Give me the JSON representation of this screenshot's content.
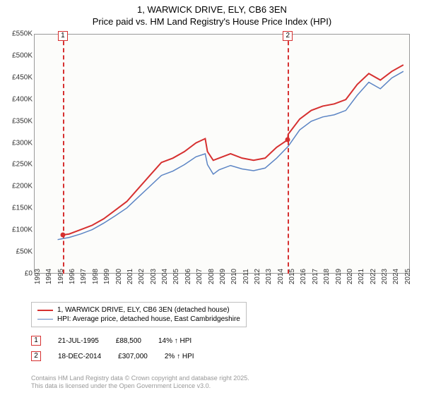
{
  "title": "1, WARWICK DRIVE, ELY, CB6 3EN",
  "subtitle": "Price paid vs. HM Land Registry's House Price Index (HPI)",
  "chart": {
    "type": "line",
    "background_color": "#fcfcfa",
    "grid_color": "#e8e8e8",
    "axis_color": "#999999",
    "series": [
      {
        "name": "1, WARWICK DRIVE, ELY, CB6 3EN (detached house)",
        "color": "#d63030",
        "line_width": 2,
        "x": [
          1995.5,
          1996,
          1997,
          1998,
          1999,
          2000,
          2001,
          2002,
          2003,
          2004,
          2005,
          2006,
          2007,
          2007.8,
          2008,
          2008.5,
          2009,
          2010,
          2011,
          2012,
          2013,
          2014,
          2014.95,
          2015,
          2016,
          2017,
          2018,
          2019,
          2020,
          2021,
          2022,
          2023,
          2024,
          2025
        ],
        "y": [
          88,
          90,
          100,
          110,
          125,
          145,
          165,
          195,
          225,
          255,
          265,
          280,
          300,
          310,
          280,
          260,
          265,
          275,
          265,
          260,
          265,
          290,
          307,
          320,
          355,
          375,
          385,
          390,
          400,
          435,
          460,
          445,
          465,
          480
        ]
      },
      {
        "name": "HPI: Average price, detached house, East Cambridgeshire",
        "color": "#5b84c4",
        "line_width": 1.5,
        "x": [
          1995,
          1996,
          1997,
          1998,
          1999,
          2000,
          2001,
          2002,
          2003,
          2004,
          2005,
          2006,
          2007,
          2007.8,
          2008,
          2008.5,
          2009,
          2010,
          2011,
          2012,
          2013,
          2014,
          2015,
          2016,
          2017,
          2018,
          2019,
          2020,
          2021,
          2022,
          2023,
          2024,
          2025
        ],
        "y": [
          77,
          82,
          90,
          100,
          115,
          132,
          150,
          175,
          200,
          225,
          235,
          250,
          268,
          275,
          250,
          228,
          238,
          248,
          240,
          236,
          242,
          265,
          292,
          330,
          350,
          360,
          365,
          375,
          410,
          440,
          425,
          450,
          465
        ]
      }
    ],
    "y_axis": {
      "min": 0,
      "max": 550,
      "step": 50,
      "labels": [
        "£0",
        "£50K",
        "£100K",
        "£150K",
        "£200K",
        "£250K",
        "£300K",
        "£350K",
        "£400K",
        "£450K",
        "£500K",
        "£550K"
      ],
      "label_fontsize": 10
    },
    "x_axis": {
      "min": 1993,
      "max": 2025.5,
      "ticks": [
        1993,
        1994,
        1995,
        1996,
        1997,
        1998,
        1999,
        2000,
        2001,
        2002,
        2003,
        2004,
        2005,
        2006,
        2007,
        2008,
        2009,
        2010,
        2011,
        2012,
        2013,
        2014,
        2015,
        2016,
        2017,
        2018,
        2019,
        2020,
        2021,
        2022,
        2023,
        2024,
        2025
      ],
      "label_fontsize": 10
    },
    "markers": [
      {
        "id": "1",
        "x": 1995.5,
        "y": 88.5
      },
      {
        "id": "2",
        "x": 2014.95,
        "y": 307
      }
    ]
  },
  "legend": {
    "border_color": "#bfbfbf",
    "items": [
      {
        "color": "#d63030",
        "line_width": 2,
        "label": "1, WARWICK DRIVE, ELY, CB6 3EN (detached house)"
      },
      {
        "color": "#5b84c4",
        "line_width": 1.5,
        "label": "HPI: Average price, detached house, East Cambridgeshire"
      }
    ]
  },
  "sales": [
    {
      "id": "1",
      "date": "21-JUL-1995",
      "price": "£88,500",
      "delta": "14% ↑ HPI"
    },
    {
      "id": "2",
      "date": "18-DEC-2014",
      "price": "£307,000",
      "delta": "2% ↑ HPI"
    }
  ],
  "footer_line1": "Contains HM Land Registry data © Crown copyright and database right 2025.",
  "footer_line2": "This data is licensed under the Open Government Licence v3.0."
}
